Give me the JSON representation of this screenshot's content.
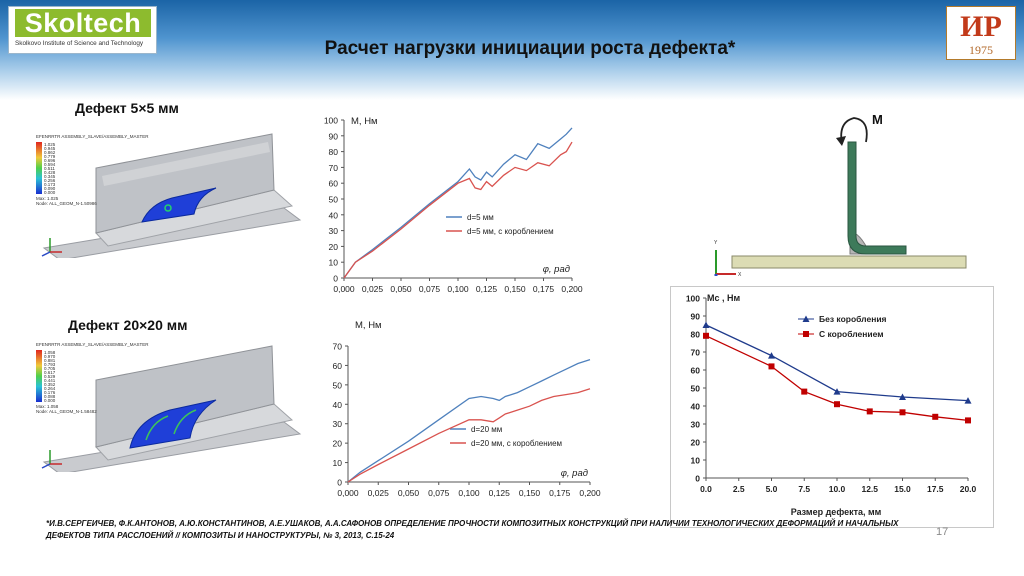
{
  "slide": {
    "title": "Расчет нагрузки инициации роста дефекта*",
    "page_number": "17",
    "footnote": "*И.В.СЕРГЕИЧЕВ, Ф.К.АНТОНОВ, А.Ю.КОНСТАНТИНОВ, А.Е.УШАКОВ, А.А.САФОНОВ ОПРЕДЕЛЕНИЕ ПРОЧНОСТИ КОМПОЗИТНЫХ КОНСТРУКЦИЙ ПРИ НАЛИЧИИ ТЕХНОЛОГИЧЕСКИХ ДЕФОРМАЦИЙ И НАЧАЛЬНЫХ ДЕФЕКТОВ ТИПА РАССЛОЕНИЙ // КОМПОЗИТЫ И НАНОСТРУКТУРЫ, № 3, 2013, С.15-24"
  },
  "logos": {
    "left_mark": "Skoltech",
    "left_sub": "Skolkovo Institute of Science and Technology",
    "right_glyph": "ИР",
    "right_year": "1975"
  },
  "defects": {
    "small_caption": "Дефект 5×5 мм",
    "large_caption": "Дефект 20×20 мм"
  },
  "fem_small": {
    "header": "EFENRRTR ASSEMBLY_SLAVE/ASSEMBLY_MASTER",
    "legend": [
      "1.025",
      "0.945",
      "0.862",
      "0.779",
      "0.696",
      "0.594",
      "0.511",
      "0.428",
      "0.345",
      "0.256",
      "0.173",
      "0.090",
      "0.000"
    ],
    "max_label": "Max: 1.025",
    "node_label": "Node: ALL_GEOM_N-1.50986"
  },
  "fem_large": {
    "header": "EFENRRTR ASSEMBLY_SLAVE/ASSEMBLY_MASTER",
    "legend": [
      "1.058",
      "0.970",
      "0.881",
      "0.793",
      "0.705",
      "0.617",
      "0.529",
      "0.441",
      "0.352",
      "0.264",
      "0.176",
      "0.088",
      "0.000"
    ],
    "max_label": "Max: 1.058",
    "node_label": "Node: ALL_GEOM_N-1.58482"
  },
  "sketch": {
    "moment_label": "M",
    "axis_y": "Y",
    "axis_x": "X"
  },
  "chart_data": [
    {
      "type": "line",
      "ylabel": "M, Нм",
      "xlabel": "φ, рад",
      "xlim": [
        0,
        0.2
      ],
      "ylim": [
        0,
        100
      ],
      "xticks": [
        "0,000",
        "0,025",
        "0,050",
        "0,075",
        "0,100",
        "0,125",
        "0,150",
        "0,175",
        "0,200"
      ],
      "yticks": [
        "0",
        "10",
        "20",
        "30",
        "40",
        "50",
        "60",
        "70",
        "80",
        "90",
        "100"
      ],
      "legend": "middle-right",
      "grid": false,
      "series": [
        {
          "name": "d=5 мм",
          "color": "#4f81bd",
          "x": [
            0,
            0.01,
            0.025,
            0.05,
            0.075,
            0.1,
            0.11,
            0.115,
            0.12,
            0.125,
            0.13,
            0.14,
            0.15,
            0.16,
            0.17,
            0.18,
            0.19,
            0.195,
            0.2
          ],
          "y": [
            0,
            10,
            18,
            32,
            47,
            61,
            69,
            64,
            62,
            67,
            64,
            72,
            78,
            75,
            85,
            82,
            88,
            91,
            95
          ]
        },
        {
          "name": "d=5 мм, с короблением",
          "color": "#d9534f",
          "x": [
            0,
            0.01,
            0.025,
            0.05,
            0.075,
            0.1,
            0.11,
            0.115,
            0.12,
            0.125,
            0.13,
            0.14,
            0.15,
            0.16,
            0.17,
            0.18,
            0.19,
            0.195,
            0.2
          ],
          "y": [
            0,
            10,
            17,
            31,
            46,
            60,
            63,
            57,
            56,
            61,
            58,
            65,
            70,
            68,
            73,
            71,
            78,
            80,
            86
          ]
        }
      ]
    },
    {
      "type": "line",
      "ylabel": "M, Нм",
      "xlabel": "φ, рад",
      "xlim": [
        0,
        0.2
      ],
      "ylim": [
        0,
        70
      ],
      "xticks": [
        "0,000",
        "0,025",
        "0,050",
        "0,075",
        "0,100",
        "0,125",
        "0,150",
        "0,175",
        "0,200"
      ],
      "yticks": [
        "0",
        "10",
        "20",
        "30",
        "40",
        "50",
        "60",
        "70"
      ],
      "legend": "middle-right",
      "grid": false,
      "series": [
        {
          "name": "d=20 мм",
          "color": "#4f81bd",
          "x": [
            0,
            0.01,
            0.025,
            0.05,
            0.075,
            0.1,
            0.11,
            0.12,
            0.125,
            0.13,
            0.14,
            0.15,
            0.16,
            0.17,
            0.18,
            0.19,
            0.2
          ],
          "y": [
            0,
            5,
            11,
            21,
            32,
            43,
            44,
            43,
            42,
            44,
            46,
            49,
            52,
            55,
            58,
            61,
            63
          ]
        },
        {
          "name": "d=20 мм, с короблением",
          "color": "#d9534f",
          "x": [
            0,
            0.01,
            0.025,
            0.05,
            0.075,
            0.1,
            0.11,
            0.12,
            0.125,
            0.13,
            0.14,
            0.15,
            0.16,
            0.17,
            0.18,
            0.19,
            0.2
          ],
          "y": [
            0,
            4,
            9,
            17,
            25,
            32,
            32,
            31,
            33,
            35,
            37,
            39,
            42,
            44,
            45,
            46,
            48
          ]
        }
      ]
    },
    {
      "type": "line",
      "ylabel": "Mс , Нм",
      "xlabel": "Размер дефекта, мм",
      "xlim": [
        0,
        20
      ],
      "ylim": [
        0,
        100
      ],
      "xticks": [
        "0.0",
        "2.5",
        "5.0",
        "7.5",
        "10.0",
        "12.5",
        "15.0",
        "17.5",
        "20.0"
      ],
      "yticks": [
        "0",
        "10",
        "20",
        "30",
        "40",
        "50",
        "60",
        "70",
        "80",
        "90",
        "100"
      ],
      "legend": "top-right",
      "grid": false,
      "series": [
        {
          "name": "Без коробления",
          "color": "#1f3b8c",
          "marker": "triangle",
          "x": [
            0,
            5,
            10,
            15,
            20
          ],
          "y": [
            85,
            68,
            48,
            45,
            43
          ]
        },
        {
          "name": "С короблением",
          "color": "#c00000",
          "marker": "square",
          "x": [
            0,
            5,
            7.5,
            10,
            12.5,
            15,
            17.5,
            20
          ],
          "y": [
            79,
            62,
            48,
            41,
            37,
            36.5,
            34,
            32
          ]
        }
      ]
    }
  ]
}
